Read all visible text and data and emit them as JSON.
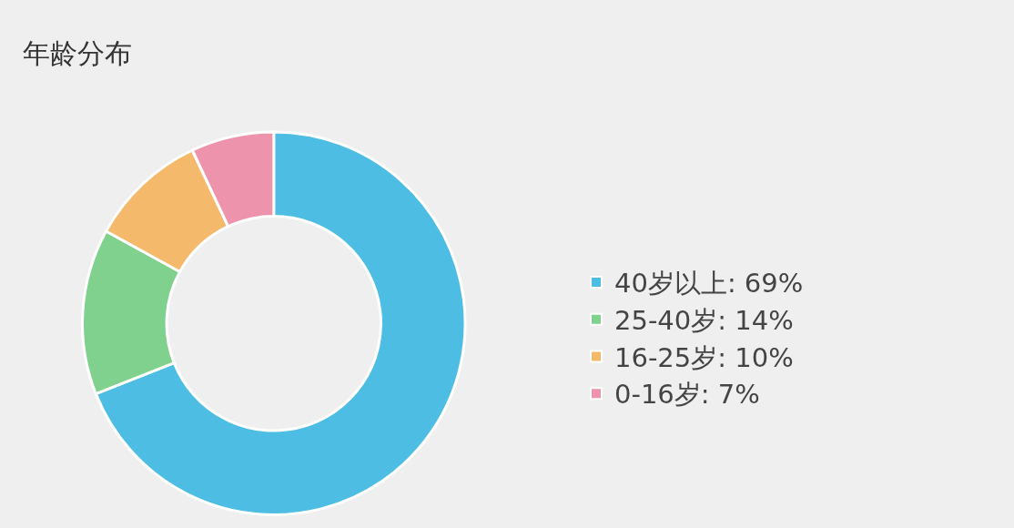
{
  "chart_data": {
    "type": "donut",
    "title": "年龄分布",
    "categories": [
      "40岁以上: 69%",
      "25-40岁: 14%",
      "16-25岁: 10%",
      "0-16岁: 7%"
    ],
    "values": [
      69,
      14,
      10,
      7
    ],
    "colors": [
      "#4dbde3",
      "#80d08e",
      "#f4b96a",
      "#ee93ac"
    ],
    "legend": "right"
  }
}
